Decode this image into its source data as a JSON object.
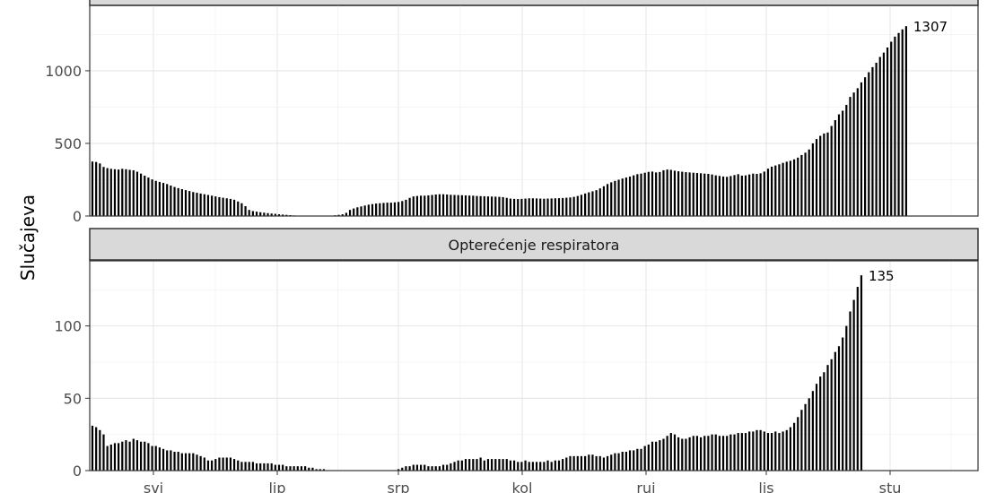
{
  "chart_data": {
    "type": "bar",
    "y_axis_title": "Slučajeva",
    "x_tick_labels": [
      "svi",
      "lip",
      "srp",
      "kol",
      "ruj",
      "lis",
      "stu"
    ],
    "grid": true,
    "bar_color": "#000000",
    "strip_fill": "#d9d9d9",
    "panels": [
      {
        "title": "",
        "ylim": [
          0,
          1450
        ],
        "y_ticks": [
          0,
          500,
          1000
        ],
        "peak_label": "1307",
        "values": [
          375,
          372,
          362,
          338,
          330,
          325,
          322,
          320,
          325,
          322,
          318,
          315,
          305,
          292,
          278,
          265,
          252,
          242,
          235,
          228,
          220,
          210,
          200,
          192,
          185,
          178,
          172,
          165,
          160,
          155,
          150,
          145,
          140,
          135,
          130,
          126,
          122,
          118,
          112,
          100,
          88,
          68,
          42,
          34,
          30,
          26,
          23,
          20,
          17,
          15,
          12,
          10,
          8,
          6,
          4,
          3,
          2,
          2,
          1,
          1,
          1,
          1,
          1,
          2,
          3,
          5,
          8,
          12,
          22,
          42,
          52,
          60,
          66,
          72,
          78,
          82,
          86,
          88,
          90,
          92,
          92,
          94,
          97,
          103,
          112,
          125,
          135,
          138,
          140,
          140,
          142,
          145,
          148,
          150,
          150,
          148,
          146,
          145,
          144,
          143,
          142,
          141,
          140,
          138,
          137,
          136,
          135,
          134,
          133,
          132,
          130,
          125,
          120,
          118,
          117,
          118,
          120,
          122,
          122,
          121,
          120,
          119,
          120,
          121,
          122,
          123,
          124,
          126,
          128,
          132,
          138,
          146,
          155,
          163,
          170,
          178,
          190,
          205,
          220,
          232,
          242,
          250,
          258,
          265,
          272,
          280,
          288,
          292,
          298,
          304,
          306,
          300,
          303,
          315,
          320,
          318,
          312,
          308,
          305,
          302,
          300,
          298,
          296,
          294,
          292,
          290,
          286,
          280,
          276,
          272,
          270,
          275,
          282,
          288,
          278,
          280,
          286,
          292,
          290,
          294,
          306,
          326,
          340,
          348,
          356,
          366,
          374,
          380,
          390,
          402,
          420,
          436,
          458,
          500,
          530,
          552,
          568,
          575,
          620,
          660,
          700,
          725,
          765,
          820,
          850,
          880,
          920,
          955,
          990,
          1025,
          1055,
          1095,
          1125,
          1160,
          1200,
          1235,
          1260,
          1285,
          1307
        ]
      },
      {
        "title": "Opterećenje respiratora",
        "ylim": [
          0,
          145
        ],
        "y_ticks": [
          0,
          50,
          100
        ],
        "peak_label": "135",
        "values": [
          31,
          30,
          28,
          25,
          17,
          18,
          19,
          19,
          20,
          21,
          20,
          22,
          21,
          20,
          20,
          19,
          17,
          17,
          16,
          15,
          14,
          14,
          13,
          13,
          12,
          12,
          12,
          12,
          11,
          10,
          9,
          7,
          7,
          8,
          9,
          9,
          9,
          9,
          8,
          7,
          6,
          6,
          6,
          6,
          5,
          5,
          5,
          5,
          5,
          4,
          4,
          4,
          3,
          3,
          3,
          3,
          3,
          3,
          2,
          2,
          1,
          1,
          1,
          0,
          0,
          0,
          0,
          0,
          0,
          0,
          0,
          0,
          0,
          0,
          0,
          0,
          0,
          0,
          0,
          0,
          0,
          0,
          1,
          2,
          3,
          3,
          4,
          4,
          4,
          4,
          3,
          3,
          3,
          3,
          4,
          4,
          5,
          6,
          7,
          7,
          8,
          8,
          8,
          8,
          9,
          7,
          8,
          8,
          8,
          8,
          8,
          8,
          7,
          7,
          6,
          6,
          7,
          6,
          6,
          6,
          6,
          6,
          7,
          6,
          7,
          7,
          8,
          9,
          10,
          10,
          10,
          10,
          10,
          11,
          11,
          10,
          10,
          9,
          10,
          11,
          12,
          12,
          13,
          13,
          14,
          14,
          15,
          15,
          17,
          18,
          20,
          20,
          21,
          22,
          24,
          26,
          25,
          23,
          22,
          22,
          23,
          24,
          24,
          23,
          24,
          24,
          25,
          25,
          24,
          24,
          24,
          25,
          25,
          26,
          26,
          26,
          27,
          27,
          28,
          28,
          27,
          26,
          26,
          27,
          26,
          27,
          28,
          30,
          33,
          37,
          42,
          46,
          50,
          55,
          60,
          65,
          68,
          73,
          77,
          82,
          86,
          92,
          100,
          110,
          118,
          127,
          135
        ]
      }
    ]
  }
}
